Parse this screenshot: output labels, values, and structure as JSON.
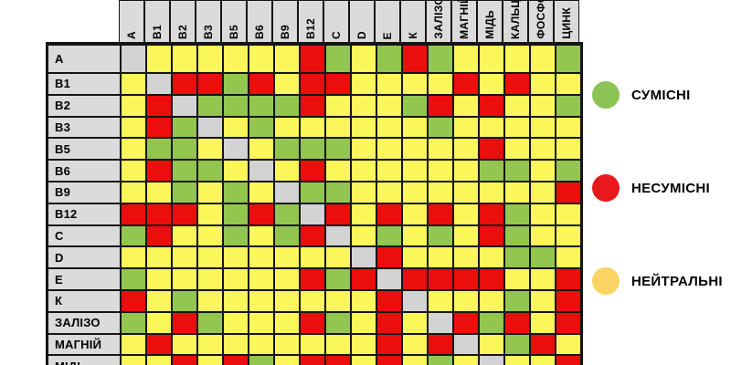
{
  "chart_data": {
    "type": "heatmap",
    "title": "",
    "columns": [
      "А",
      "В1",
      "В2",
      "В3",
      "В5",
      "В6",
      "В9",
      "В12",
      "С",
      "D",
      "Е",
      "К",
      "ЗАЛІЗО",
      "МАГНІЙ",
      "МІДЬ",
      "КАЛЬЦІЙ",
      "ФОСФОР",
      "ЦИНК"
    ],
    "rows": [
      "А",
      "В1",
      "В2",
      "В3",
      "В5",
      "В6",
      "В9",
      "В12",
      "С",
      "D",
      "Е",
      "К",
      "ЗАЛІЗО",
      "МАГНІЙ",
      "МІДЬ"
    ],
    "code_meaning": {
      "c": "сумісні",
      "i": "несумісні",
      "n": "нейтральні",
      "s": "діагональ (той самий елемент)"
    },
    "cells": [
      "snnnnnnicncicnnnnc",
      "nsiiciniinnnnininn",
      "nisccccinnncininnc",
      "nicsncnnnnnncnnnnn",
      "nccnsncccnnnnninnn",
      "niccnsninnnnnnccnc",
      "nncncnsccnnnnnnnni",
      "iiincicsinininicnn",
      "cinncncisncncnicnn",
      "nnnnnnnnnsinnnnccn",
      "cnnnnnnicisiiiinni",
      "incnnnnnnnisnnncni",
      "cnicnnnicninsicini",
      "ninnnnnnnninisncin",
      "nninicniinincnsnni"
    ],
    "legend_position": "right",
    "grid": true
  },
  "legend": {
    "items": [
      {
        "key": "c",
        "label": "СУМІСНІ",
        "color": "#8CC355"
      },
      {
        "key": "i",
        "label": "НЕСУМІСНІ",
        "color": "#E8191D"
      },
      {
        "key": "n",
        "label": "НЕЙТРАЛЬНІ",
        "color": "#FAD464"
      }
    ]
  },
  "colors": {
    "cell_green": "#93C64F",
    "cell_red": "#EC0D0D",
    "cell_yellow": "#FBF65A",
    "cell_gray": "#D3D3D3",
    "header_bg": "#DBDBDB",
    "border": "#151515",
    "background": "#FFFFFF"
  }
}
